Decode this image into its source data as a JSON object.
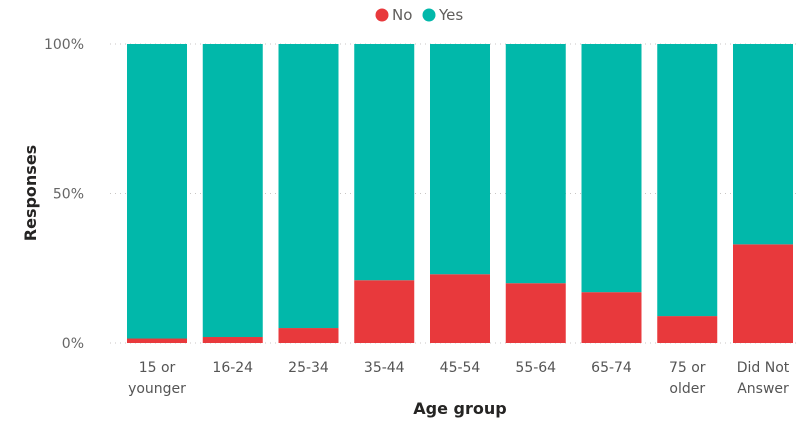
{
  "chart_data": {
    "type": "bar",
    "stacked": "100%",
    "categories": [
      [
        "15 or",
        "younger"
      ],
      [
        "16-24"
      ],
      [
        "25-34"
      ],
      [
        "35-44"
      ],
      [
        "45-54"
      ],
      [
        "55-64"
      ],
      [
        "65-74"
      ],
      [
        "75 or",
        "older"
      ],
      [
        "Did Not",
        "Answer"
      ]
    ],
    "series": [
      {
        "name": "No",
        "color": "#e8393c",
        "values": [
          1.5,
          2,
          5,
          21,
          23,
          20,
          17,
          9,
          33
        ]
      },
      {
        "name": "Yes",
        "color": "#01b8aa",
        "values": [
          98.5,
          98,
          95,
          79,
          77,
          80,
          83,
          91,
          67
        ]
      }
    ],
    "xlabel": "Age group",
    "ylabel": "Responses",
    "ylim": [
      0,
      100
    ],
    "yticks": [
      {
        "value": 0,
        "label": "0%"
      },
      {
        "value": 50,
        "label": "50%"
      },
      {
        "value": 100,
        "label": "100%"
      }
    ],
    "grid": true,
    "legend_position": "top-center"
  }
}
